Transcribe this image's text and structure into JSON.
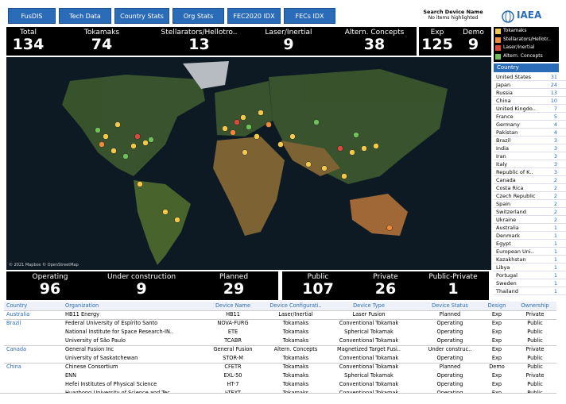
{
  "nav": {
    "buttons": [
      "FusDIS",
      "Tech Data",
      "Country Stats",
      "Org Stats",
      "FEC2020 IDX",
      "FECs IDX"
    ],
    "search_label": "Search Device Name",
    "search_status": "No items highlighted",
    "logo": "IAEA"
  },
  "kpi_types": [
    {
      "label": "Total",
      "value": 134
    },
    {
      "label": "Tokamaks",
      "value": 74
    },
    {
      "label": "Stellarators/Hellotro..",
      "value": 13
    },
    {
      "label": "Laser/Inertial",
      "value": 9
    },
    {
      "label": "Altern. Concepts",
      "value": 38
    }
  ],
  "kpi_design": [
    {
      "label": "Exp",
      "value": 125
    },
    {
      "label": "Demo",
      "value": 9
    }
  ],
  "legend": [
    {
      "name": "Tokamaks",
      "color": "#f2c94c"
    },
    {
      "name": "Stellarators/Hellotr..",
      "color": "#ef8a3a"
    },
    {
      "name": "Laser/Inertial",
      "color": "#d94a3c"
    },
    {
      "name": "Altern. Concepts",
      "color": "#6fbf5a"
    }
  ],
  "map": {
    "attribution": "© 2021 Mapbox © OpenStreetMap"
  },
  "country_list": {
    "header": "Country",
    "rows": [
      [
        "United States",
        31
      ],
      [
        "Japan",
        24
      ],
      [
        "Russia",
        13
      ],
      [
        "China",
        10
      ],
      [
        "United Kingdo..",
        7
      ],
      [
        "France",
        5
      ],
      [
        "Germany",
        4
      ],
      [
        "Pakistan",
        4
      ],
      [
        "Brazil",
        3
      ],
      [
        "India",
        3
      ],
      [
        "Iran",
        3
      ],
      [
        "Italy",
        3
      ],
      [
        "Republic of K..",
        3
      ],
      [
        "Canada",
        2
      ],
      [
        "Costa Rica",
        2
      ],
      [
        "Czech Republic",
        2
      ],
      [
        "Spain",
        2
      ],
      [
        "Switzerland",
        2
      ],
      [
        "Ukraine",
        2
      ],
      [
        "Australia",
        1
      ],
      [
        "Denmark",
        1
      ],
      [
        "Egypt",
        1
      ],
      [
        "European Uni..",
        1
      ],
      [
        "Kazakhstan",
        1
      ],
      [
        "Libya",
        1
      ],
      [
        "Portugal",
        1
      ],
      [
        "Sweden",
        1
      ],
      [
        "Thailand",
        1
      ]
    ]
  },
  "kpi_status": [
    {
      "label": "Operating",
      "value": 96
    },
    {
      "label": "Under construction",
      "value": 9
    },
    {
      "label": "Planned",
      "value": 29
    }
  ],
  "kpi_ownership": [
    {
      "label": "Public",
      "value": 107
    },
    {
      "label": "Private",
      "value": 26
    },
    {
      "label": "Public-Private",
      "value": 1
    }
  ],
  "table": {
    "columns": [
      "Country",
      "Organization",
      "Device Name",
      "Device Configurati..",
      "Device Type",
      "Device Status",
      "Design",
      "Ownership"
    ],
    "groups": [
      {
        "country": "Australia",
        "rows": [
          [
            "HB11 Energy",
            "HB11",
            "Laser/Inertial",
            "Laser Fusion",
            "Planned",
            "Exp",
            "Private"
          ]
        ]
      },
      {
        "country": "Brazil",
        "rows": [
          [
            "Federal University of Espírito Santo",
            "NOVA-FURG",
            "Tokamaks",
            "Conventional Tokamak",
            "Operating",
            "Exp",
            "Public"
          ],
          [
            "National Institute for Space Research-IN..",
            "ETE",
            "Tokamaks",
            "Spherical Tokamak",
            "Operating",
            "Exp",
            "Public"
          ],
          [
            "University of São Paulo",
            "TCABR",
            "Tokamaks",
            "Conventional Tokamak",
            "Operating",
            "Exp",
            "Public"
          ]
        ]
      },
      {
        "country": "Canada",
        "rows": [
          [
            "General Fusion Inc",
            "General Fusion",
            "Altern. Concepts",
            "Magnetized Target Fusi..",
            "Under construc..",
            "Exp",
            "Private"
          ],
          [
            "University of Saskatchewan",
            "STOR-M",
            "Tokamaks",
            "Conventional Tokamak",
            "Operating",
            "Exp",
            "Public"
          ]
        ]
      },
      {
        "country": "China",
        "rows": [
          [
            "Chinese Consortium",
            "CFETR",
            "Tokamaks",
            "Conventional Tokamak",
            "Planned",
            "Demo",
            "Public"
          ],
          [
            "ENN",
            "EXL-50",
            "Tokamaks",
            "Spherical Tokamak",
            "Operating",
            "Exp",
            "Private"
          ],
          [
            "Hefei Institutes of Physical Science",
            "HT-7",
            "Tokamaks",
            "Conventional Tokamak",
            "Operating",
            "Exp",
            "Public"
          ],
          [
            "Huazhong University of Science and Tec..",
            "J-TEXT",
            "Tokamaks",
            "Conventional Tokamak",
            "Operating",
            "Exp",
            "Public"
          ]
        ]
      }
    ]
  }
}
